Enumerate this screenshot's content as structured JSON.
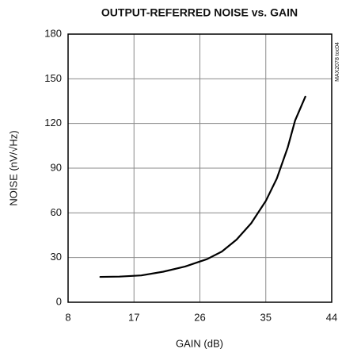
{
  "chart_data": {
    "type": "line",
    "title": "OUTPUT-REFERRED NOISE vs. GAIN",
    "x_label": "GAIN (dB)",
    "y_label": "NOISE (nV/√Hz)",
    "side_note": "MAX2078 toc04",
    "x": [
      12.4,
      15,
      18,
      21,
      24,
      27,
      29,
      31,
      33,
      35,
      36.5,
      38,
      39,
      40.4
    ],
    "series": [
      {
        "color": "#000000",
        "values": [
          17,
          17.2,
          18,
          20.5,
          24,
          29,
          34,
          42,
          53,
          68,
          83,
          104,
          122,
          138
        ]
      }
    ],
    "xlim": [
      8,
      44
    ],
    "xticks": [
      8,
      17,
      26,
      35,
      44
    ],
    "ylim": [
      0,
      180
    ],
    "yticks": [
      0,
      30,
      60,
      90,
      120,
      150,
      180
    ],
    "grid": true
  }
}
